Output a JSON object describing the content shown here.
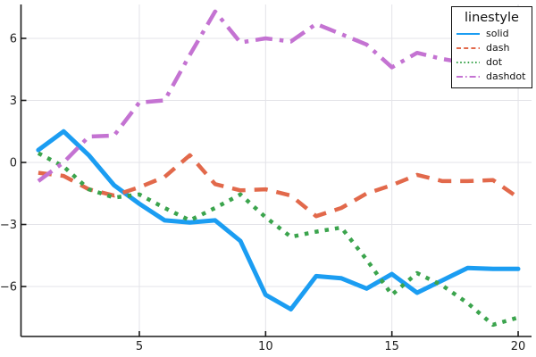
{
  "chart_data": {
    "type": "line",
    "title": "",
    "xlabel": "",
    "ylabel": "",
    "grid": true,
    "legend_title": "linestyle",
    "legend_position": "top-right",
    "xlim": [
      0.3,
      20.5
    ],
    "ylim": [
      -8.4,
      7.65
    ],
    "x_ticks": [
      5,
      10,
      15,
      20
    ],
    "x_tick_labels": [
      "5",
      "10",
      "15",
      "20"
    ],
    "y_ticks": [
      -6,
      -3,
      0,
      3,
      6
    ],
    "y_tick_labels": [
      "−6",
      "−3",
      "0",
      "3",
      "6"
    ],
    "x": [
      1,
      2,
      3,
      4,
      5,
      6,
      7,
      8,
      9,
      10,
      11,
      12,
      13,
      14,
      15,
      16,
      17,
      18,
      19,
      20
    ],
    "series": [
      {
        "name": "solid",
        "linestyle": "solid",
        "color": "#1B9DF2",
        "values": [
          0.6,
          1.5,
          0.35,
          -1.1,
          -2.0,
          -2.8,
          -2.9,
          -2.8,
          -3.8,
          -6.4,
          -7.1,
          -5.5,
          -5.6,
          -6.1,
          -5.4,
          -6.3,
          -5.7,
          -5.1,
          -5.15,
          -5.15
        ]
      },
      {
        "name": "dash",
        "linestyle": "dash",
        "color": "#E2694B",
        "values": [
          -0.5,
          -0.65,
          -1.3,
          -1.6,
          -1.2,
          -0.7,
          0.35,
          -1.05,
          -1.35,
          -1.3,
          -1.6,
          -2.6,
          -2.2,
          -1.5,
          -1.1,
          -0.6,
          -0.9,
          -0.9,
          -0.85,
          -1.7
        ]
      },
      {
        "name": "dot",
        "linestyle": "dot",
        "color": "#3BA44D",
        "values": [
          0.45,
          -0.2,
          -1.3,
          -1.7,
          -1.55,
          -2.2,
          -2.8,
          -2.2,
          -1.55,
          -2.65,
          -3.6,
          -3.35,
          -3.15,
          -4.7,
          -6.4,
          -5.35,
          -5.95,
          -6.8,
          -7.85,
          -7.5
        ]
      },
      {
        "name": "dashdot",
        "linestyle": "dashdot",
        "color": "#C473D2",
        "values": [
          -0.9,
          0.0,
          1.25,
          1.3,
          2.9,
          3.0,
          5.2,
          7.3,
          5.8,
          6.0,
          5.85,
          6.7,
          6.2,
          5.7,
          4.6,
          5.3,
          5.0,
          4.8,
          5.3,
          5.6
        ]
      }
    ]
  },
  "legend": {
    "title": "linestyle",
    "entries": [
      {
        "label": "solid"
      },
      {
        "label": "dash"
      },
      {
        "label": "dot"
      },
      {
        "label": "dashdot"
      }
    ]
  },
  "style": {
    "grid_color": "#E3E3E8",
    "spine_color": "#1A1A1A",
    "tick_label_color": "#1F1F1F"
  }
}
